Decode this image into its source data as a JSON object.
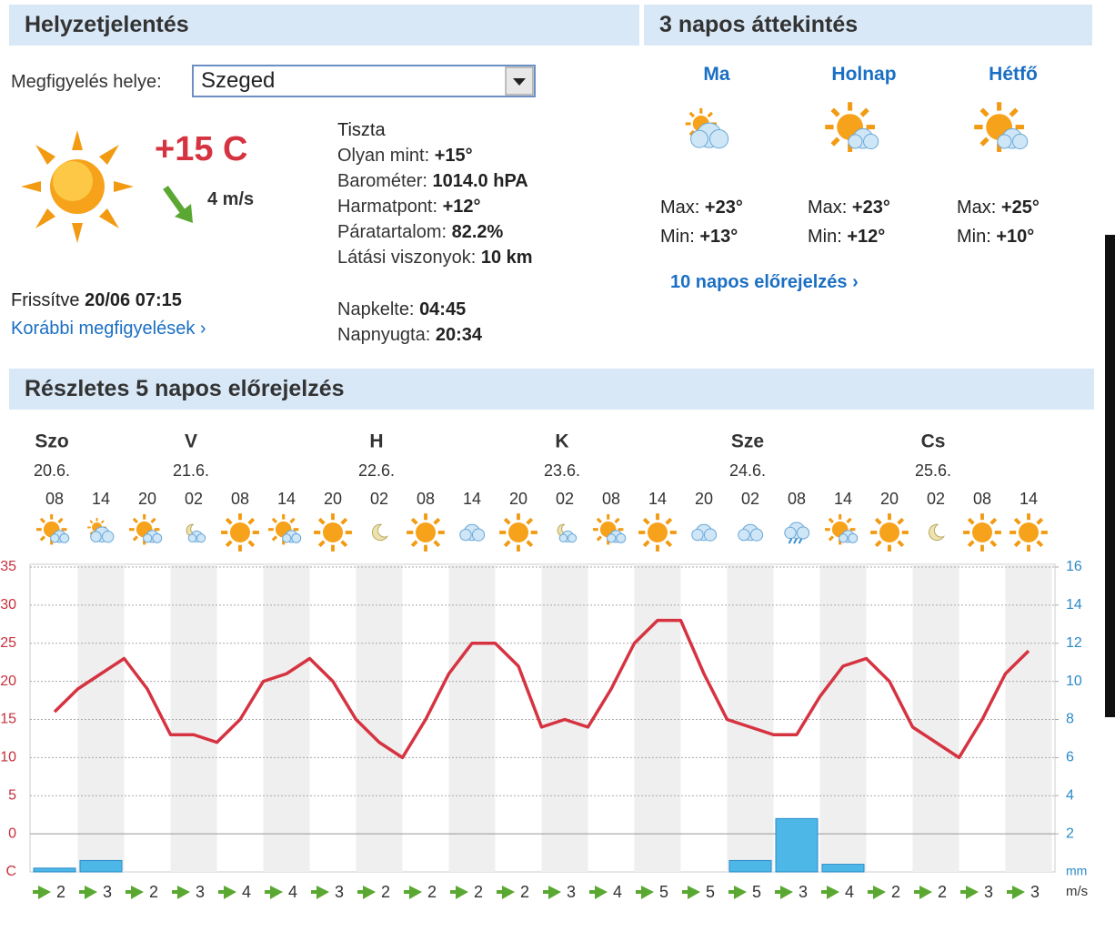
{
  "current": {
    "title": "Helyzetjelentés",
    "location_label": "Megfigyelés helye:",
    "location": "Szeged",
    "temperature": "+15 C",
    "wind": "4 m/s",
    "condition": "Tiszta",
    "details": [
      {
        "label": "Olyan mint:",
        "value": "+15°"
      },
      {
        "label": "Barométer:",
        "value": "1014.0 hPA"
      },
      {
        "label": "Harmatpont:",
        "value": "+12°"
      },
      {
        "label": "Páratartalom:",
        "value": "82.2%"
      },
      {
        "label": "Látási viszonyok:",
        "value": "10 km"
      }
    ],
    "sun": [
      {
        "label": "Napkelte:",
        "value": "04:45"
      },
      {
        "label": "Napnyugta:",
        "value": "20:34"
      }
    ],
    "updated_label": "Frissítve",
    "updated": "20/06 07:15",
    "history_link": "Korábbi megfigyelések"
  },
  "overview": {
    "title": "3 napos áttekintés",
    "max_label": "Max:",
    "min_label": "Min:",
    "days": [
      {
        "name": "Ma",
        "max": "+23°",
        "min": "+13°"
      },
      {
        "name": "Holnap",
        "max": "+23°",
        "min": "+12°"
      },
      {
        "name": "Hétfő",
        "max": "+25°",
        "min": "+10°"
      }
    ],
    "link": "10 napos előrejelzés"
  },
  "forecast": {
    "title": "Részletes 5 napos előrejelzés",
    "days": [
      {
        "name": "Szo",
        "date": "20.6."
      },
      {
        "name": "V",
        "date": "21.6."
      },
      {
        "name": "H",
        "date": "22.6."
      },
      {
        "name": "K",
        "date": "23.6."
      },
      {
        "name": "Sze",
        "date": "24.6."
      },
      {
        "name": "Cs",
        "date": "25.6."
      }
    ],
    "chart_data": {
      "type": "line",
      "categories": [
        "08",
        null,
        "14",
        null,
        "20",
        null,
        "02",
        null,
        "08",
        null,
        "14",
        null,
        "20",
        null,
        "02",
        null,
        "08",
        null,
        "14",
        null,
        "20",
        null,
        "02",
        null,
        "08",
        null,
        "14",
        null,
        "20",
        null,
        "02",
        null,
        "08",
        null,
        "14",
        null,
        "20",
        null,
        "02",
        null,
        "08",
        null,
        "14"
      ],
      "series": [
        {
          "color": "#d63341",
          "values": [
            16,
            19,
            21,
            23,
            19,
            13,
            13,
            12,
            15,
            20,
            21,
            23,
            20,
            15,
            12,
            10,
            15,
            21,
            25,
            25,
            22,
            14,
            15,
            14,
            19,
            25,
            28,
            28,
            21,
            15,
            14,
            13,
            13,
            18,
            22,
            23,
            20,
            14,
            12,
            10,
            15,
            21,
            24
          ]
        },
        {
          "type": "bar",
          "axis": "y2",
          "color": "#4db8e8",
          "values": [
            0.2,
            null,
            0.6,
            null,
            0,
            null,
            0,
            null,
            0,
            null,
            0,
            null,
            0,
            null,
            0,
            null,
            0,
            null,
            0,
            null,
            0,
            null,
            0,
            null,
            0,
            null,
            0,
            null,
            0,
            null,
            0.6,
            null,
            2.8,
            null,
            0.4,
            null,
            0,
            null,
            0,
            null,
            0,
            null,
            0
          ]
        }
      ],
      "wind_speed": [
        2,
        null,
        3,
        null,
        2,
        null,
        3,
        null,
        4,
        null,
        4,
        null,
        3,
        null,
        2,
        null,
        2,
        null,
        2,
        null,
        2,
        null,
        3,
        null,
        4,
        null,
        5,
        null,
        5,
        null,
        5,
        null,
        3,
        null,
        4,
        null,
        2,
        null,
        2,
        null,
        3,
        null,
        3
      ],
      "ylim": [
        -5,
        35
      ],
      "yticks": [
        0,
        5,
        10,
        15,
        20,
        25,
        30,
        35
      ],
      "y_unit": "C",
      "y2lim": [
        0,
        16
      ],
      "y2ticks": [
        2,
        4,
        6,
        8,
        10,
        12,
        14,
        16
      ],
      "y2_unit": "mm",
      "wind_unit": "m/s",
      "grid": true
    }
  }
}
